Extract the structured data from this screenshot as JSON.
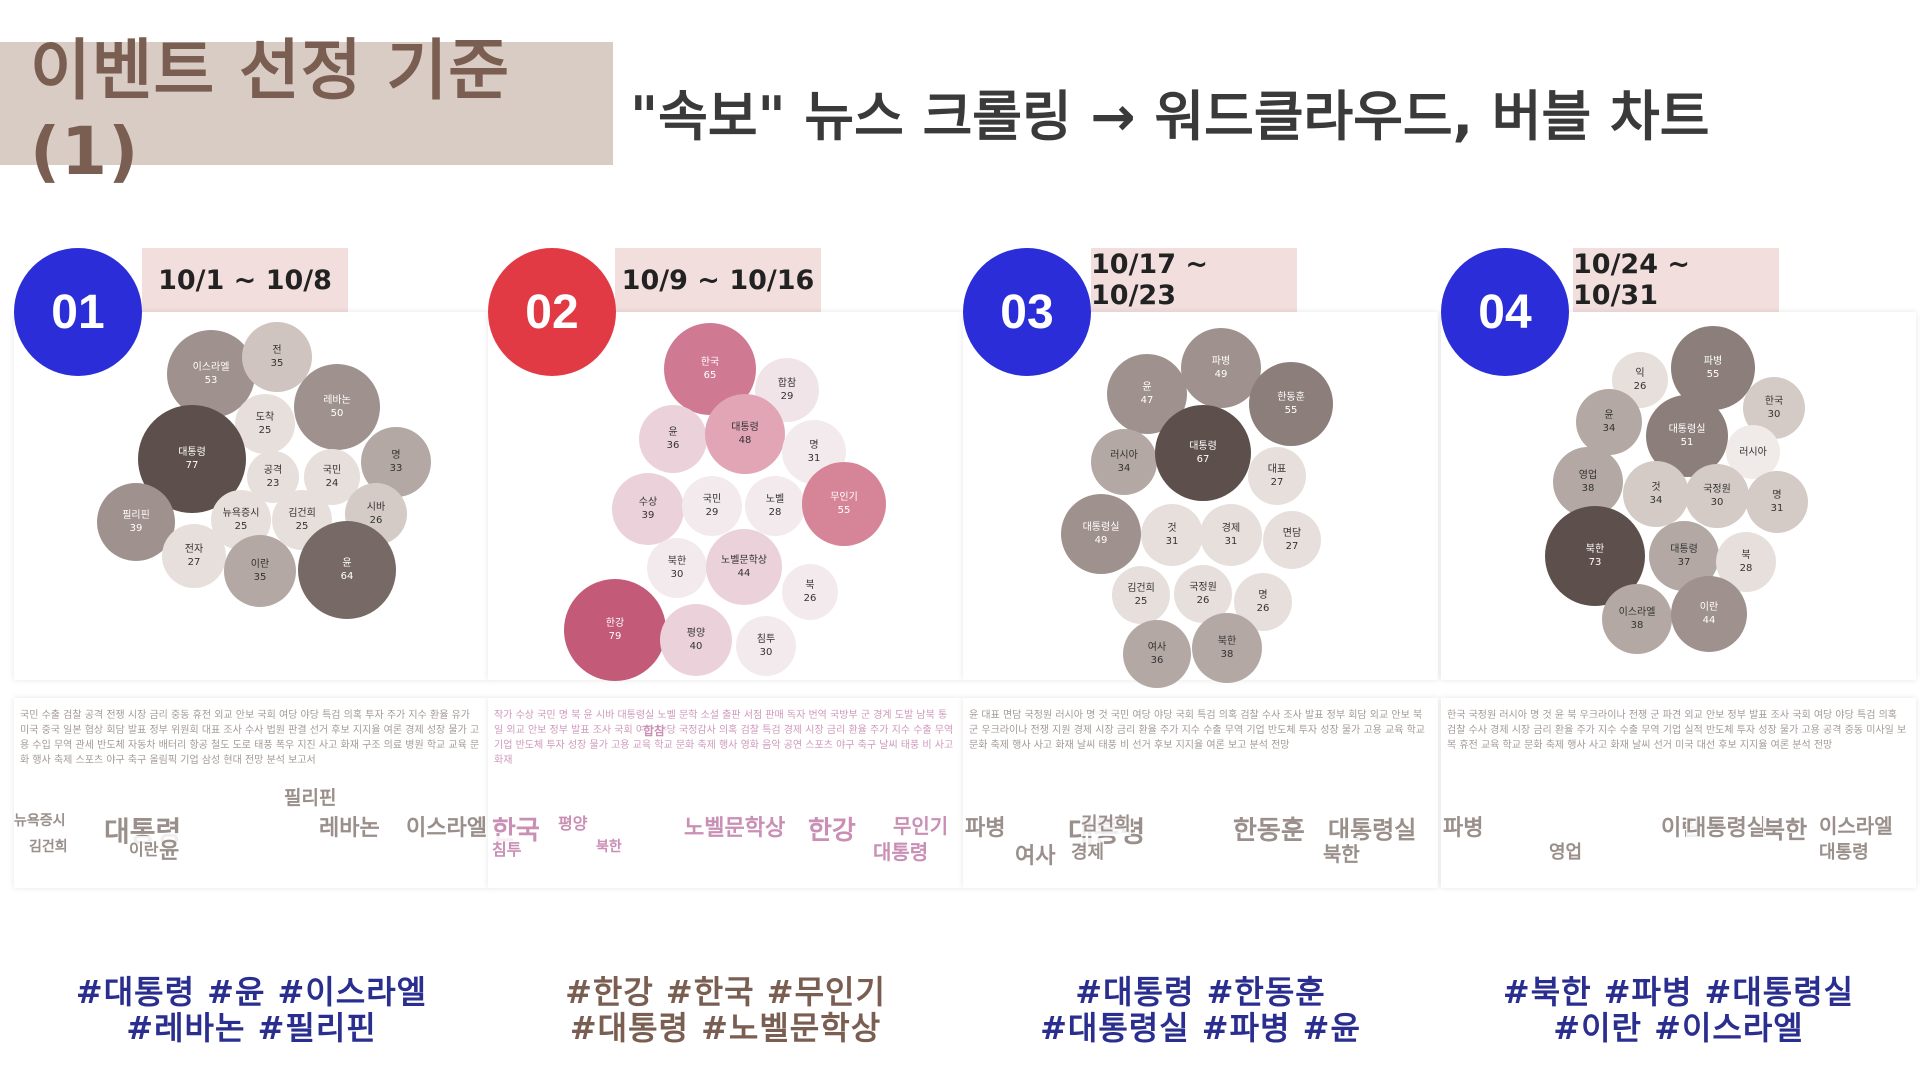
{
  "title": "이벤트 선정 기준(1)",
  "subtitle": "\"속보\" 뉴스 크롤링 → 워드클라우드, 버블 차트",
  "panels": [
    {
      "number": "01",
      "period": "10/1 ~ 10/8",
      "num_color": "#2b2ed8",
      "hashtag_color": "#2a2f8f",
      "hashtag_line1": "#대통령 #윤 #이스라엘",
      "hashtag_line2": "#레바논 #필리핀",
      "cloud_color": "#9a8f8a",
      "cloud_keywords": [
        "대통령",
        "윤",
        "이스라엘",
        "레바논",
        "필리핀",
        "이란",
        "김건희",
        "뉴욕증시"
      ],
      "cloud_filler": "국민 수출 검찰 공격 전쟁 시장 금리 중동 휴전 외교 안보 국회 여당 야당 특검 의혹 투자 주가 지수 환율 유가 미국 중국 일본 협상 회담 발표 정부 위원회 대표 조사 수사 법원 판결 선거 후보 지지율 여론 경제 성장 물가 고용 수입 무역 관세 반도체 자동차 배터리 항공 철도 도로 태풍 폭우 지진 사고 화재 구조 의료 병원 학교 교육 문화 행사 축제 스포츠 야구 축구 올림픽 기업 삼성 현대 전망 분석 보고서",
      "bubbles": [
        {
          "label": "이스라엘",
          "value": "53",
          "x": 197,
          "y": 62,
          "r": 44,
          "color": "#9f918d",
          "text": "#ffffff"
        },
        {
          "label": "전",
          "value": "35",
          "x": 263,
          "y": 45,
          "r": 35,
          "color": "#cfc4c0",
          "text": "#333333"
        },
        {
          "label": "레바논",
          "value": "50",
          "x": 323,
          "y": 95,
          "r": 43,
          "color": "#9f918d",
          "text": "#ffffff"
        },
        {
          "label": "도착",
          "value": "25",
          "x": 251,
          "y": 112,
          "r": 30,
          "color": "#e7dfdc",
          "text": "#333333"
        },
        {
          "label": "대통령",
          "value": "77",
          "x": 178,
          "y": 147,
          "r": 54,
          "color": "#5d4f4b",
          "text": "#ffffff"
        },
        {
          "label": "명",
          "value": "33",
          "x": 382,
          "y": 150,
          "r": 35,
          "color": "#b3a8a4",
          "text": "#333333"
        },
        {
          "label": "공격",
          "value": "23",
          "x": 259,
          "y": 165,
          "r": 26,
          "color": "#e7dfdc",
          "text": "#333333"
        },
        {
          "label": "국민",
          "value": "24",
          "x": 318,
          "y": 165,
          "r": 28,
          "color": "#e7dfdc",
          "text": "#333333"
        },
        {
          "label": "필리핀",
          "value": "39",
          "x": 122,
          "y": 210,
          "r": 39,
          "color": "#9f918d",
          "text": "#ffffff"
        },
        {
          "label": "뉴욕증시",
          "value": "25",
          "x": 227,
          "y": 208,
          "r": 30,
          "color": "#e7dfdc",
          "text": "#333333"
        },
        {
          "label": "김건희",
          "value": "25",
          "x": 288,
          "y": 208,
          "r": 30,
          "color": "#e7dfdc",
          "text": "#333333"
        },
        {
          "label": "시바",
          "value": "26",
          "x": 362,
          "y": 202,
          "r": 31,
          "color": "#d4cac6",
          "text": "#333333"
        },
        {
          "label": "전자",
          "value": "27",
          "x": 180,
          "y": 244,
          "r": 32,
          "color": "#e7dfdc",
          "text": "#333333"
        },
        {
          "label": "이란",
          "value": "35",
          "x": 246,
          "y": 259,
          "r": 36,
          "color": "#b3a8a4",
          "text": "#333333"
        },
        {
          "label": "윤",
          "value": "64",
          "x": 333,
          "y": 258,
          "r": 49,
          "color": "#766966",
          "text": "#ffffff"
        }
      ]
    },
    {
      "number": "02",
      "period": "10/9 ~ 10/16",
      "num_color": "#e23a45",
      "hashtag_color": "#7a5e52",
      "hashtag_line1": "#한강 #한국 #무인기",
      "hashtag_line2": "#대통령 #노벨문학상",
      "cloud_color": "#c98fb4",
      "cloud_keywords": [
        "한국",
        "노벨문학상",
        "한강",
        "무인기",
        "대통령",
        "침투",
        "평양",
        "합참",
        "북한"
      ],
      "cloud_filler": "작가 수상 국민 명 북 윤 시바 대통령실 노벨 문학 소설 출판 서점 판매 독자 번역 국방부 군 경계 도발 남북 통일 외교 안보 정부 발표 조사 국회 여당 야당 국정감사 의혹 검찰 특검 경제 시장 금리 환율 주가 지수 수출 무역 기업 반도체 투자 성장 물가 고용 교육 학교 문화 축제 행사 영화 음악 공연 스포츠 야구 축구 날씨 태풍 비 사고 화재",
      "bubbles": [
        {
          "label": "한국",
          "value": "65",
          "x": 222,
          "y": 57,
          "r": 46,
          "color": "#cf7a92",
          "text": "#ffffff"
        },
        {
          "label": "합참",
          "value": "29",
          "x": 299,
          "y": 78,
          "r": 32,
          "color": "#f0e4e8",
          "text": "#333333"
        },
        {
          "label": "윤",
          "value": "36",
          "x": 185,
          "y": 127,
          "r": 34,
          "color": "#ebd2da",
          "text": "#333333"
        },
        {
          "label": "대통령",
          "value": "48",
          "x": 257,
          "y": 122,
          "r": 40,
          "color": "#e2a5b6",
          "text": "#333333"
        },
        {
          "label": "명",
          "value": "31",
          "x": 326,
          "y": 140,
          "r": 32,
          "color": "#f3eaed",
          "text": "#333333"
        },
        {
          "label": "수상",
          "value": "39",
          "x": 160,
          "y": 197,
          "r": 36,
          "color": "#ebd2da",
          "text": "#333333"
        },
        {
          "label": "국민",
          "value": "29",
          "x": 224,
          "y": 194,
          "r": 30,
          "color": "#f3eaed",
          "text": "#333333"
        },
        {
          "label": "노벨",
          "value": "28",
          "x": 287,
          "y": 194,
          "r": 30,
          "color": "#f3eaed",
          "text": "#333333"
        },
        {
          "label": "무인기",
          "value": "55",
          "x": 356,
          "y": 192,
          "r": 42,
          "color": "#d68599",
          "text": "#ffffff"
        },
        {
          "label": "북한",
          "value": "30",
          "x": 189,
          "y": 256,
          "r": 30,
          "color": "#f3eaed",
          "text": "#333333"
        },
        {
          "label": "노벨문학상",
          "value": "44",
          "x": 256,
          "y": 255,
          "r": 38,
          "color": "#ebd2da",
          "text": "#333333"
        },
        {
          "label": "북",
          "value": "26",
          "x": 322,
          "y": 280,
          "r": 28,
          "color": "#f3eaed",
          "text": "#333333"
        },
        {
          "label": "한강",
          "value": "79",
          "x": 127,
          "y": 318,
          "r": 51,
          "color": "#c25a78",
          "text": "#ffffff"
        },
        {
          "label": "평양",
          "value": "40",
          "x": 208,
          "y": 328,
          "r": 36,
          "color": "#ebd2da",
          "text": "#333333"
        },
        {
          "label": "침투",
          "value": "30",
          "x": 278,
          "y": 334,
          "r": 30,
          "color": "#f3eaed",
          "text": "#333333"
        }
      ]
    },
    {
      "number": "03",
      "period": "10/17 ~ 10/23",
      "num_color": "#2b2ed8",
      "hashtag_color": "#2a2f8f",
      "hashtag_line1": "#대통령 #한동훈",
      "hashtag_line2": "#대통령실 #파병 #윤",
      "cloud_color": "#9a8f8a",
      "cloud_keywords": [
        "대통령",
        "한동훈",
        "대통령실",
        "파병",
        "여사",
        "경제",
        "김건희",
        "북한"
      ],
      "cloud_filler": "윤 대표 면담 국정원 러시아 명 것 국민 여당 야당 국회 특검 의혹 검찰 수사 조사 발표 정부 회담 외교 안보 북 군 우크라이나 전쟁 지원 경제 시장 금리 환율 주가 지수 수출 무역 기업 반도체 투자 성장 물가 고용 교육 학교 문화 축제 행사 사고 화재 날씨 태풍 비 선거 후보 지지율 여론 보고 분석 전망",
      "bubbles": [
        {
          "label": "파병",
          "value": "49",
          "x": 258,
          "y": 56,
          "r": 40,
          "color": "#9f918d",
          "text": "#ffffff"
        },
        {
          "label": "윤",
          "value": "47",
          "x": 184,
          "y": 82,
          "r": 40,
          "color": "#9f918d",
          "text": "#ffffff"
        },
        {
          "label": "한동훈",
          "value": "55",
          "x": 328,
          "y": 92,
          "r": 42,
          "color": "#8c7f7b",
          "text": "#ffffff"
        },
        {
          "label": "러시아",
          "value": "34",
          "x": 161,
          "y": 150,
          "r": 33,
          "color": "#b3a8a4",
          "text": "#333333"
        },
        {
          "label": "대통령",
          "value": "67",
          "x": 240,
          "y": 141,
          "r": 48,
          "color": "#5d4f4b",
          "text": "#ffffff"
        },
        {
          "label": "대표",
          "value": "27",
          "x": 314,
          "y": 164,
          "r": 29,
          "color": "#e7dfdc",
          "text": "#333333"
        },
        {
          "label": "대통령실",
          "value": "49",
          "x": 138,
          "y": 222,
          "r": 40,
          "color": "#9f918d",
          "text": "#ffffff"
        },
        {
          "label": "것",
          "value": "31",
          "x": 209,
          "y": 223,
          "r": 31,
          "color": "#e7dfdc",
          "text": "#333333"
        },
        {
          "label": "경제",
          "value": "31",
          "x": 268,
          "y": 223,
          "r": 31,
          "color": "#e7dfdc",
          "text": "#333333"
        },
        {
          "label": "면담",
          "value": "27",
          "x": 329,
          "y": 228,
          "r": 29,
          "color": "#e7dfdc",
          "text": "#333333"
        },
        {
          "label": "김건희",
          "value": "25",
          "x": 178,
          "y": 283,
          "r": 29,
          "color": "#e7dfdc",
          "text": "#333333"
        },
        {
          "label": "국정원",
          "value": "26",
          "x": 240,
          "y": 282,
          "r": 29,
          "color": "#e7dfdc",
          "text": "#333333"
        },
        {
          "label": "명",
          "value": "26",
          "x": 300,
          "y": 290,
          "r": 29,
          "color": "#e7dfdc",
          "text": "#333333"
        },
        {
          "label": "여사",
          "value": "36",
          "x": 194,
          "y": 342,
          "r": 34,
          "color": "#b3a8a4",
          "text": "#333333"
        },
        {
          "label": "북한",
          "value": "38",
          "x": 264,
          "y": 336,
          "r": 35,
          "color": "#b3a8a4",
          "text": "#333333"
        }
      ]
    },
    {
      "number": "04",
      "period": "10/24 ~ 10/31",
      "num_color": "#2b2ed8",
      "hashtag_color": "#2a2f8f",
      "hashtag_line1": "#북한 #파병 #대통령실",
      "hashtag_line2": "#이란 #이스라엘",
      "cloud_color": "#9a8f8a",
      "cloud_keywords": [
        "파병",
        "이란",
        "대통령실",
        "북한",
        "이스라엘",
        "대통령",
        "영업"
      ],
      "cloud_filler": "한국 국정원 러시아 명 것 윤 북 우크라이나 전쟁 군 파견 외교 안보 정부 발표 조사 국회 여당 야당 특검 의혹 검찰 수사 경제 시장 금리 환율 주가 지수 수출 무역 기업 실적 반도체 투자 성장 물가 고용 공격 중동 미사일 보복 휴전 교육 학교 문화 축제 행사 사고 화재 날씨 선거 미국 대선 후보 지지율 여론 분석 전망",
      "bubbles": [
        {
          "label": "파병",
          "value": "55",
          "x": 272,
          "y": 56,
          "r": 42,
          "color": "#8c7f7b",
          "text": "#ffffff"
        },
        {
          "label": "익",
          "value": "26",
          "x": 199,
          "y": 68,
          "r": 28,
          "color": "#e7dfdc",
          "text": "#333333"
        },
        {
          "label": "한국",
          "value": "30",
          "x": 333,
          "y": 96,
          "r": 31,
          "color": "#d4cac6",
          "text": "#333333"
        },
        {
          "label": "윤",
          "value": "34",
          "x": 168,
          "y": 110,
          "r": 33,
          "color": "#b3a8a4",
          "text": "#333333"
        },
        {
          "label": "대통령실",
          "value": "51",
          "x": 246,
          "y": 124,
          "r": 41,
          "color": "#8c7f7b",
          "text": "#ffffff"
        },
        {
          "label": "러시아",
          "value": "",
          "x": 312,
          "y": 140,
          "r": 27,
          "color": "#f0ebe9",
          "text": "#333333"
        },
        {
          "label": "영업",
          "value": "38",
          "x": 147,
          "y": 170,
          "r": 35,
          "color": "#b3a8a4",
          "text": "#333333"
        },
        {
          "label": "것",
          "value": "34",
          "x": 215,
          "y": 182,
          "r": 33,
          "color": "#d4cac6",
          "text": "#333333"
        },
        {
          "label": "국정원",
          "value": "30",
          "x": 276,
          "y": 184,
          "r": 32,
          "color": "#d4cac6",
          "text": "#333333"
        },
        {
          "label": "명",
          "value": "31",
          "x": 336,
          "y": 190,
          "r": 31,
          "color": "#d4cac6",
          "text": "#333333"
        },
        {
          "label": "북한",
          "value": "73",
          "x": 154,
          "y": 244,
          "r": 50,
          "color": "#5d4f4b",
          "text": "#ffffff"
        },
        {
          "label": "대통령",
          "value": "37",
          "x": 243,
          "y": 244,
          "r": 35,
          "color": "#b3a8a4",
          "text": "#333333"
        },
        {
          "label": "북",
          "value": "28",
          "x": 305,
          "y": 250,
          "r": 30,
          "color": "#e7dfdc",
          "text": "#333333"
        },
        {
          "label": "이스라엘",
          "value": "38",
          "x": 196,
          "y": 307,
          "r": 35,
          "color": "#b3a8a4",
          "text": "#333333"
        },
        {
          "label": "이란",
          "value": "44",
          "x": 268,
          "y": 302,
          "r": 38,
          "color": "#9f918d",
          "text": "#ffffff"
        }
      ]
    }
  ]
}
